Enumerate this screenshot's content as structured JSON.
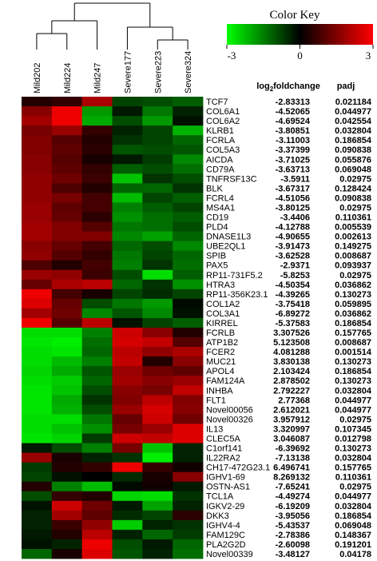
{
  "colors": {
    "low": "#00ff00",
    "mid": "#000000",
    "high": "#ff0000",
    "background": "#ffffff",
    "tree": "#000000"
  },
  "chart_data": {
    "type": "heatmap",
    "color_key": {
      "title": "Color Key",
      "ticks": [
        {
          "value": -3,
          "label": "-3"
        },
        {
          "value": 0,
          "label": "0"
        },
        {
          "value": 3,
          "label": "3"
        }
      ],
      "range": [
        -3,
        3
      ]
    },
    "columns": [
      "Mild202",
      "Mild224",
      "Mild247",
      "Severe177",
      "Severe223",
      "Severe324"
    ],
    "table_headers": {
      "fold": "log₂foldchange",
      "padj": "padj"
    },
    "rows": [
      {
        "gene": "TCF7",
        "fold": "-2.83313",
        "padj": "0.021184",
        "values": [
          0.4,
          0.6,
          2.0,
          -0.8,
          -0.9,
          -1.1
        ]
      },
      {
        "gene": "COL6A1",
        "fold": "-4.52065",
        "padj": "0.044977",
        "values": [
          1.6,
          2.8,
          -1.8,
          -0.3,
          -1.4,
          -0.4
        ]
      },
      {
        "gene": "COL6A2",
        "fold": "-4.69524",
        "padj": "0.042554",
        "values": [
          1.9,
          2.8,
          -2.0,
          -0.9,
          -1.8,
          -0.2
        ]
      },
      {
        "gene": "KLRB1",
        "fold": "-3.80851",
        "padj": "0.032804",
        "values": [
          1.4,
          1.8,
          0.6,
          -0.4,
          -0.8,
          -2.1
        ]
      },
      {
        "gene": "FCRLA",
        "fold": "-3.11003",
        "padj": "0.186854",
        "values": [
          1.5,
          1.0,
          0.4,
          -0.6,
          -0.8,
          -1.2
        ]
      },
      {
        "gene": "COL5A3",
        "fold": "-3.37399",
        "padj": "0.090838",
        "values": [
          1.5,
          1.1,
          0.5,
          -1.0,
          -0.9,
          -1.0
        ]
      },
      {
        "gene": "AICDA",
        "fold": "-3.71025",
        "padj": "0.055876",
        "values": [
          1.6,
          1.0,
          0.3,
          -0.3,
          -0.7,
          -1.6
        ]
      },
      {
        "gene": "CD79A",
        "fold": "-3.63713",
        "padj": "0.069048",
        "values": [
          1.6,
          1.1,
          0.6,
          -1.1,
          -0.9,
          -1.3
        ]
      },
      {
        "gene": "TNFRSF13C",
        "fold": "-3.5911",
        "padj": "0.02975",
        "values": [
          1.7,
          1.3,
          0.7,
          -2.3,
          -0.6,
          -0.9
        ]
      },
      {
        "gene": "BLK",
        "fold": "-3.67317",
        "padj": "0.128424",
        "values": [
          1.7,
          0.9,
          0.4,
          -1.2,
          -1.2,
          -0.6
        ]
      },
      {
        "gene": "FCRL4",
        "fold": "-4.51056",
        "padj": "0.090838",
        "values": [
          1.7,
          1.4,
          0.8,
          -2.2,
          -0.8,
          -1.1
        ]
      },
      {
        "gene": "MS4A1",
        "fold": "-3.80125",
        "padj": "0.02975",
        "values": [
          1.8,
          1.1,
          0.8,
          -1.5,
          -1.1,
          -0.8
        ]
      },
      {
        "gene": "CD19",
        "fold": "-3.4406",
        "padj": "0.110361",
        "values": [
          1.8,
          1.2,
          0.5,
          -1.7,
          -1.3,
          -1.1
        ]
      },
      {
        "gene": "PLD4",
        "fold": "-4.12788",
        "padj": "0.005539",
        "values": [
          1.9,
          1.5,
          1.0,
          -1.4,
          -1.3,
          -0.9
        ]
      },
      {
        "gene": "DNASE1L3",
        "fold": "-4.90655",
        "padj": "0.002613",
        "values": [
          1.9,
          1.5,
          1.5,
          -1.6,
          -1.9,
          -1.2
        ]
      },
      {
        "gene": "UBE2QL1",
        "fold": "-3.91473",
        "padj": "0.149275",
        "values": [
          1.6,
          1.2,
          0.8,
          -1.2,
          -0.9,
          -1.6
        ]
      },
      {
        "gene": "SPIB",
        "fold": "-3.62528",
        "padj": "0.008687",
        "values": [
          1.7,
          1.0,
          0.6,
          -1.4,
          -0.8,
          -1.2
        ]
      },
      {
        "gene": "PAX5",
        "fold": "-2.9371",
        "padj": "0.093937",
        "values": [
          0.9,
          0.4,
          0.8,
          -1.5,
          -0.6,
          -1.3
        ]
      },
      {
        "gene": "RP11-731F5.2",
        "fold": "-5.8253",
        "padj": "0.02975",
        "values": [
          1.8,
          1.7,
          0.7,
          -0.9,
          -2.6,
          -1.1
        ]
      },
      {
        "gene": "HTRA3",
        "fold": "-4.50354",
        "padj": "0.036862",
        "values": [
          1.2,
          2.0,
          2.2,
          -1.2,
          -0.6,
          -1.7
        ]
      },
      {
        "gene": "RP11-356K23.1",
        "fold": "-4.39265",
        "padj": "0.130273",
        "values": [
          2.8,
          0.8,
          0.3,
          -0.8,
          -0.5,
          -0.8
        ]
      },
      {
        "gene": "COL1A2",
        "fold": "-3.75418",
        "padj": "0.059895",
        "values": [
          2.6,
          1.2,
          -0.9,
          -1.4,
          -1.8,
          -0.1
        ]
      },
      {
        "gene": "COL3A1",
        "fold": "-6.89272",
        "padj": "0.036862",
        "values": [
          1.9,
          1.3,
          -1.6,
          -1.0,
          -1.6,
          -0.2
        ]
      },
      {
        "gene": "KIRREL",
        "fold": "-5.37583",
        "padj": "0.186854",
        "values": [
          2.8,
          1.0,
          2.2,
          -0.2,
          -0.8,
          -1.1
        ]
      },
      {
        "gene": "FCRLB",
        "fold": "3.307526",
        "padj": "0.157765",
        "values": [
          -2.6,
          -2.6,
          -1.5,
          2.4,
          1.6,
          0.4
        ]
      },
      {
        "gene": "ATP1B2",
        "fold": "5.123508",
        "padj": "0.008687",
        "values": [
          -2.7,
          -2.8,
          -1.3,
          2.5,
          2.3,
          1.0
        ]
      },
      {
        "gene": "FCER2",
        "fold": "4.081288",
        "padj": "0.001514",
        "values": [
          -2.6,
          -2.7,
          -1.2,
          2.2,
          1.7,
          2.0
        ]
      },
      {
        "gene": "MUC21",
        "fold": "3.830138",
        "padj": "0.130273",
        "values": [
          -2.6,
          -2.2,
          -1.5,
          2.3,
          0.4,
          1.6
        ]
      },
      {
        "gene": "APOL4",
        "fold": "2.103424",
        "padj": "0.186854",
        "values": [
          -2.5,
          -2.0,
          -1.0,
          1.8,
          1.3,
          1.1
        ]
      },
      {
        "gene": "FAM124A",
        "fold": "2.878502",
        "padj": "0.130273",
        "values": [
          -2.6,
          -2.4,
          -1.2,
          1.9,
          1.6,
          1.8
        ]
      },
      {
        "gene": "INHBA",
        "fold": "2.792227",
        "padj": "0.032804",
        "values": [
          -2.7,
          -2.3,
          -0.9,
          1.6,
          1.4,
          2.3
        ]
      },
      {
        "gene": "FLT1",
        "fold": "2.77368",
        "padj": "0.044977",
        "values": [
          -2.7,
          -2.0,
          -0.6,
          1.5,
          2.2,
          1.5
        ]
      },
      {
        "gene": "Novel00056",
        "fold": "2.612021",
        "padj": "0.044977",
        "values": [
          -2.7,
          -2.1,
          -0.9,
          1.8,
          2.5,
          1.6
        ]
      },
      {
        "gene": "Novel00326",
        "fold": "3.957912",
        "padj": "0.02975",
        "values": [
          -2.6,
          -2.6,
          -1.4,
          1.2,
          2.4,
          1.3
        ]
      },
      {
        "gene": "IL13",
        "fold": "3.320997",
        "padj": "0.107345",
        "values": [
          -2.6,
          -2.3,
          -1.7,
          1.4,
          1.8,
          2.6
        ]
      },
      {
        "gene": "CLEC5A",
        "fold": "3.046087",
        "padj": "0.012798",
        "values": [
          -2.7,
          -2.5,
          -0.7,
          2.4,
          2.3,
          2.6
        ]
      },
      {
        "gene": "C1orf141",
        "fold": "-6.39692",
        "padj": "0.130273",
        "values": [
          -0.3,
          -0.9,
          -1.5,
          1.4,
          -2.3,
          -0.4
        ]
      },
      {
        "gene": "IL22RA2",
        "fold": "-7.13138",
        "padj": "0.032804",
        "values": [
          1.8,
          0.3,
          -0.4,
          -0.6,
          -2.8,
          -0.4
        ]
      },
      {
        "gene": "CH17-472G23.1",
        "fold": "6.496741",
        "padj": "0.157765",
        "values": [
          -0.7,
          0.4,
          0.6,
          2.8,
          0.6,
          0.2
        ]
      },
      {
        "gene": "IGHV1-69",
        "fold": "8.269132",
        "padj": "0.110361",
        "values": [
          -0.8,
          -0.2,
          0.0,
          -0.5,
          0.3,
          1.6
        ]
      },
      {
        "gene": "OSTN-AS1",
        "fold": "-7.65241",
        "padj": "0.02975",
        "values": [
          0.4,
          -1.5,
          -2.2,
          -0.1,
          0.2,
          -0.3
        ]
      },
      {
        "gene": "TCL1A",
        "fold": "-4.49274",
        "padj": "0.044977",
        "values": [
          -0.9,
          0.6,
          0.4,
          -2.5,
          -2.6,
          -0.6
        ]
      },
      {
        "gene": "IGKV2-29",
        "fold": "-6.19209",
        "padj": "0.032804",
        "values": [
          -0.2,
          2.4,
          1.3,
          -0.3,
          -1.9,
          -0.4
        ]
      },
      {
        "gene": "DKK3",
        "fold": "-3.95056",
        "padj": "0.186854",
        "values": [
          -0.4,
          1.9,
          1.1,
          -0.5,
          -0.8,
          0.5
        ]
      },
      {
        "gene": "IGHV4-4",
        "fold": "-5.43537",
        "padj": "0.069048",
        "values": [
          -0.4,
          0.7,
          1.7,
          -2.4,
          -0.4,
          -0.6
        ]
      },
      {
        "gene": "FAM129C",
        "fold": "-2.78386",
        "padj": "0.148367",
        "values": [
          -0.3,
          0.4,
          2.2,
          -0.4,
          -1.2,
          -0.7
        ]
      },
      {
        "gene": "PLA2G2D",
        "fold": "-2.60098",
        "padj": "0.191201",
        "values": [
          -0.2,
          -0.4,
          2.8,
          -0.9,
          -0.3,
          -1.2
        ]
      },
      {
        "gene": "Novel00339",
        "fold": "-3.48127",
        "padj": "0.04178",
        "values": [
          -1.2,
          0.3,
          2.6,
          -1.0,
          -0.4,
          -1.3
        ]
      }
    ]
  }
}
